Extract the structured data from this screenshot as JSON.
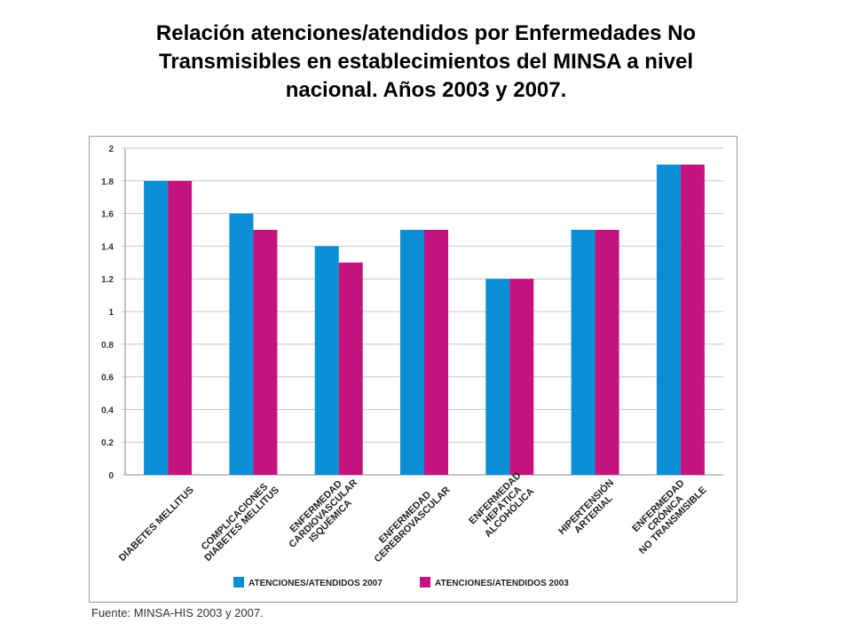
{
  "page": {
    "title_lines": [
      "Relación atenciones/atendidos por Enfermedades No",
      "Transmisibles en establecimientos del MINSA a nivel",
      "nacional. Años 2003 y 2007."
    ],
    "source": "Fuente: MINSA-HIS 2003 y 2007."
  },
  "colors": {
    "series_2007": "#0a8fd6",
    "series_2003": "#c4127f",
    "grid": "#c8c8c8",
    "axis": "#8a8a8a"
  },
  "chart_data": {
    "type": "bar",
    "title": "Relación atenciones/atendidos por Enfermedades No Transmisibles en establecimientos del MINSA a nivel nacional. Años 2003 y 2007.",
    "categories": [
      [
        "DIABETES MELLITUS"
      ],
      [
        "COMPLICACIONES",
        "DIABETES MELLITUS"
      ],
      [
        "ENFERMEDAD",
        "CARDIOVASCULAR",
        "ISQUÉMICA"
      ],
      [
        "ENFERMEDAD",
        "CEREBROVASCULAR"
      ],
      [
        "ENFERMEDAD",
        "HEPÁTICA",
        "ALCOHÓLICA"
      ],
      [
        "HIPERTENSIÓN",
        "ARTERIAL"
      ],
      [
        "ENFERMEDAD",
        "CRÓNICA",
        "NO TRANSMISIBLE"
      ]
    ],
    "series": [
      {
        "name": "ATENCIONES/ATENDIDOS 2007",
        "values": [
          1.8,
          1.6,
          1.4,
          1.5,
          1.2,
          1.5,
          1.9
        ]
      },
      {
        "name": "ATENCIONES/ATENDIDOS 2003",
        "values": [
          1.8,
          1.5,
          1.3,
          1.5,
          1.2,
          1.5,
          1.9
        ]
      }
    ],
    "ylim": [
      0,
      2
    ],
    "yticks": [
      "0",
      "0.2",
      "0.4",
      "0.6",
      "0.8",
      "1",
      "1.2",
      "1.4",
      "1.6",
      "1.8",
      "2"
    ],
    "xlabel": "",
    "ylabel": "",
    "grid": true,
    "legend_position": "bottom"
  }
}
